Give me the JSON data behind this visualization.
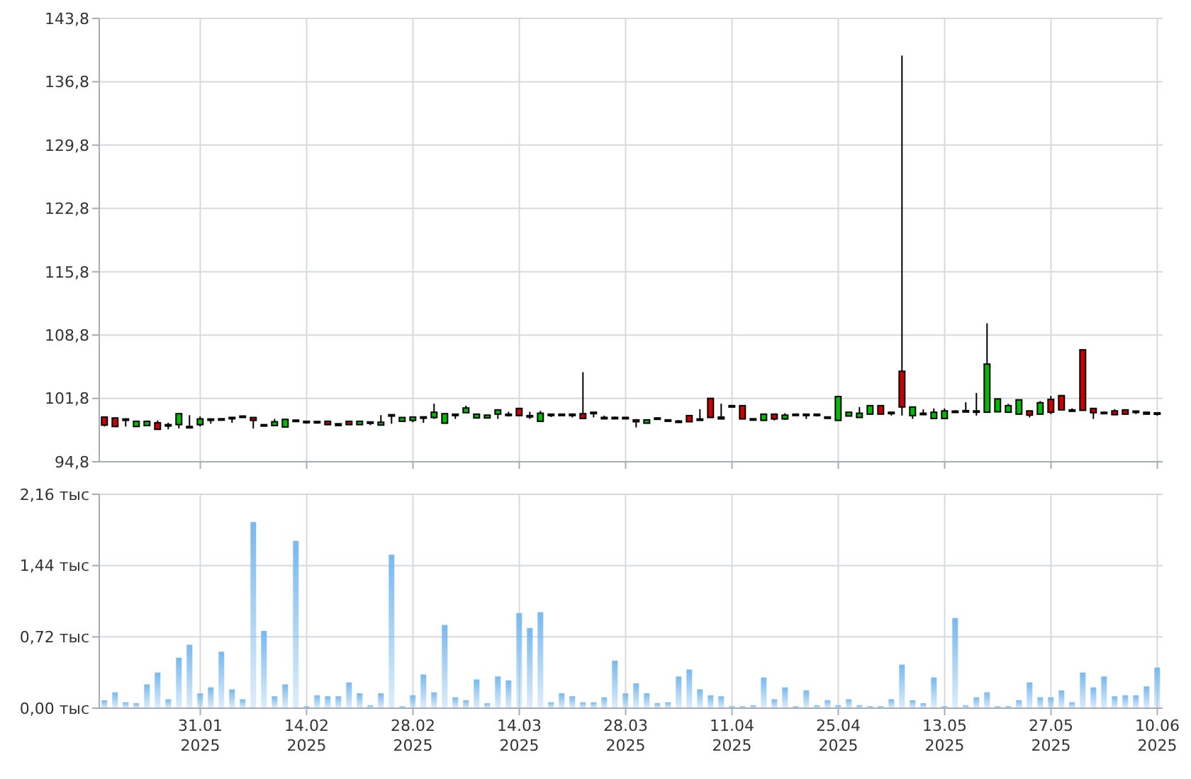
{
  "chart_data": [
    {
      "type": "candlestick",
      "categories": [
        null,
        null,
        null,
        null,
        null,
        null,
        null,
        null,
        null,
        null,
        null,
        null,
        null,
        null,
        null,
        null,
        null,
        null,
        null,
        null,
        null,
        null,
        null,
        null,
        null,
        null,
        null,
        null,
        null,
        null,
        null,
        null,
        null,
        null,
        null,
        null,
        null,
        null,
        null,
        null,
        null,
        null,
        null,
        null,
        null,
        null,
        null,
        null,
        null,
        null,
        null,
        null,
        null,
        null,
        null,
        null,
        null,
        null,
        null,
        null,
        null,
        null,
        null,
        null,
        null,
        null,
        null,
        null,
        null,
        null,
        null,
        null,
        null,
        null,
        null,
        null,
        null,
        null,
        null,
        null,
        null,
        null,
        null,
        null,
        null,
        null,
        null,
        null,
        null,
        null,
        null,
        null,
        null,
        null,
        null,
        null,
        null,
        null,
        null,
        null
      ],
      "ohlc": [
        [
          99.74,
          99.74,
          98.7,
          98.85
        ],
        [
          99.64,
          99.64,
          98.69,
          98.69
        ],
        [
          99.53,
          99.53,
          98.69,
          99.48
        ],
        [
          98.69,
          99.27,
          98.69,
          99.27
        ],
        [
          98.8,
          99.27,
          98.8,
          99.27
        ],
        [
          99.11,
          99.37,
          98.38,
          98.38
        ],
        [
          98.9,
          99.11,
          98.38,
          98.85
        ],
        [
          98.9,
          100.11,
          98.48,
          100.11
        ],
        [
          98.7,
          99.95,
          98.5,
          98.6
        ],
        [
          98.9,
          99.8,
          98.7,
          99.53
        ],
        [
          99.53,
          99.53,
          99.0,
          99.48
        ],
        [
          99.55,
          99.55,
          99.5,
          99.5
        ],
        [
          99.7,
          99.7,
          99.1,
          99.65
        ],
        [
          99.85,
          99.85,
          99.8,
          99.8
        ],
        [
          99.69,
          99.69,
          98.48,
          99.37
        ],
        [
          98.9,
          98.95,
          98.7,
          98.75
        ],
        [
          98.8,
          99.53,
          98.8,
          99.22
        ],
        [
          98.64,
          99.48,
          98.64,
          99.48
        ],
        [
          99.4,
          99.45,
          99.35,
          99.35
        ],
        [
          99.27,
          99.27,
          99.0,
          99.22
        ],
        [
          99.25,
          99.25,
          99.0,
          99.2
        ],
        [
          99.27,
          99.27,
          98.85,
          98.9
        ],
        [
          99.0,
          99.0,
          98.8,
          98.8
        ],
        [
          99.27,
          99.27,
          98.9,
          98.9
        ],
        [
          98.9,
          99.27,
          98.9,
          99.27
        ],
        [
          99.2,
          99.2,
          98.85,
          99.15
        ],
        [
          98.85,
          99.95,
          98.85,
          99.17
        ],
        [
          100.0,
          100.0,
          99.0,
          99.9
        ],
        [
          99.27,
          99.69,
          99.27,
          99.69
        ],
        [
          99.37,
          99.74,
          99.17,
          99.74
        ],
        [
          99.76,
          99.76,
          99.1,
          99.7
        ],
        [
          99.69,
          101.22,
          99.53,
          100.27
        ],
        [
          99.06,
          100.11,
          99.06,
          100.11
        ],
        [
          100.06,
          100.06,
          99.53,
          100.0
        ],
        [
          100.22,
          101.0,
          100.22,
          100.74
        ],
        [
          99.64,
          100.06,
          99.64,
          100.06
        ],
        [
          99.64,
          99.95,
          99.64,
          99.95
        ],
        [
          100.06,
          100.53,
          99.53,
          100.53
        ],
        [
          100.06,
          100.32,
          99.8,
          100.0
        ],
        [
          100.69,
          100.69,
          99.9,
          99.9
        ],
        [
          99.9,
          100.32,
          99.53,
          99.85
        ],
        [
          99.27,
          100.42,
          99.27,
          100.16
        ],
        [
          100.06,
          100.06,
          99.74,
          100.0
        ],
        [
          100.06,
          100.06,
          100.0,
          100.0
        ],
        [
          100.06,
          100.06,
          99.7,
          100.0
        ],
        [
          100.11,
          104.7,
          99.58,
          99.58
        ],
        [
          100.27,
          100.27,
          99.7,
          100.2
        ],
        [
          99.7,
          99.9,
          99.6,
          99.65
        ],
        [
          99.7,
          99.8,
          99.65,
          99.65
        ],
        [
          99.7,
          99.7,
          99.5,
          99.65
        ],
        [
          99.43,
          99.43,
          98.59,
          99.22
        ],
        [
          99.06,
          99.43,
          99.06,
          99.43
        ],
        [
          99.64,
          99.7,
          99.6,
          99.6
        ],
        [
          99.43,
          99.43,
          99.27,
          99.27
        ],
        [
          99.3,
          99.4,
          99.25,
          99.25
        ],
        [
          99.9,
          99.9,
          99.22,
          99.22
        ],
        [
          99.53,
          100.6,
          99.5,
          99.5
        ],
        [
          101.8,
          101.8,
          99.69,
          99.69
        ],
        [
          99.74,
          101.22,
          99.53,
          99.53
        ],
        [
          101.0,
          101.05,
          100.95,
          100.95
        ],
        [
          101.0,
          101.0,
          99.53,
          99.53
        ],
        [
          99.55,
          99.55,
          99.5,
          99.5
        ],
        [
          99.37,
          100.06,
          99.37,
          100.06
        ],
        [
          100.06,
          100.06,
          99.37,
          99.53
        ],
        [
          99.53,
          100.16,
          99.43,
          99.95
        ],
        [
          100.06,
          100.06,
          100.0,
          100.0
        ],
        [
          100.06,
          100.06,
          99.53,
          100.0
        ],
        [
          100.06,
          100.06,
          99.8,
          100.0
        ],
        [
          99.75,
          99.75,
          99.7,
          99.7
        ],
        [
          99.37,
          102.1,
          99.37,
          102.0
        ],
        [
          99.85,
          100.27,
          99.85,
          100.27
        ],
        [
          99.69,
          100.85,
          99.69,
          100.16
        ],
        [
          100.06,
          101.0,
          100.06,
          101.0
        ],
        [
          101.0,
          101.0,
          100.06,
          100.06
        ],
        [
          100.27,
          100.27,
          99.9,
          100.2
        ],
        [
          104.8,
          139.7,
          99.9,
          100.85
        ],
        [
          99.9,
          100.85,
          99.53,
          100.85
        ],
        [
          100.16,
          100.58,
          100.1,
          100.1
        ],
        [
          99.58,
          100.69,
          99.58,
          100.27
        ],
        [
          99.58,
          100.69,
          99.58,
          100.42
        ],
        [
          100.4,
          100.5,
          100.35,
          100.35
        ],
        [
          100.45,
          101.37,
          100.4,
          100.4
        ],
        [
          100.42,
          102.4,
          99.9,
          100.37
        ],
        [
          100.27,
          110.1,
          100.27,
          105.59
        ],
        [
          100.32,
          101.8,
          100.32,
          101.74
        ],
        [
          100.27,
          101.2,
          100.27,
          101.0
        ],
        [
          100.06,
          101.64,
          100.06,
          101.64
        ],
        [
          100.42,
          100.42,
          99.7,
          99.95
        ],
        [
          100.06,
          101.5,
          100.06,
          101.32
        ],
        [
          101.69,
          102.06,
          100.06,
          100.27
        ],
        [
          102.11,
          102.11,
          100.53,
          100.53
        ],
        [
          100.53,
          100.7,
          100.4,
          100.48
        ],
        [
          107.17,
          107.17,
          100.48,
          100.48
        ],
        [
          100.69,
          100.69,
          99.53,
          100.22
        ],
        [
          100.27,
          100.27,
          100.16,
          100.16
        ],
        [
          100.42,
          100.6,
          100.0,
          100.0
        ],
        [
          100.53,
          100.53,
          100.06,
          100.06
        ],
        [
          100.4,
          100.4,
          100.06,
          100.35
        ],
        [
          100.27,
          100.27,
          100.06,
          100.06
        ],
        [
          100.2,
          100.2,
          99.9,
          100.16
        ]
      ],
      "colors": [
        "#cc0000",
        "#cc0000",
        "#000000",
        "#00bb00",
        "#00bb00",
        "#cc0000",
        "#cc0000",
        "#00bb00",
        "#cc0000",
        "#00bb00",
        "#000000",
        "#000000",
        "#000000",
        "#000000",
        "#cc0000",
        "#000000",
        "#00bb00",
        "#00bb00",
        "#000000",
        "#000000",
        "#000000",
        "#cc0000",
        "#000000",
        "#cc0000",
        "#00bb00",
        "#000000",
        "#00bb00",
        "#000000",
        "#00bb00",
        "#00bb00",
        "#000000",
        "#00bb00",
        "#00bb00",
        "#000000",
        "#00bb00",
        "#00bb00",
        "#00bb00",
        "#00bb00",
        "#000000",
        "#cc0000",
        "#000000",
        "#00bb00",
        "#000000",
        "#000000",
        "#000000",
        "#cc0000",
        "#000000",
        "#000000",
        "#000000",
        "#000000",
        "#cc0000",
        "#00bb00",
        "#000000",
        "#000000",
        "#000000",
        "#cc0000",
        "#000000",
        "#cc0000",
        "#000000",
        "#000000",
        "#cc0000",
        "#000000",
        "#00bb00",
        "#cc0000",
        "#00bb00",
        "#000000",
        "#000000",
        "#000000",
        "#000000",
        "#00bb00",
        "#00bb00",
        "#00bb00",
        "#00bb00",
        "#cc0000",
        "#000000",
        "#cc0000",
        "#00bb00",
        "#000000",
        "#00bb00",
        "#00bb00",
        "#000000",
        "#000000",
        "#000000",
        "#00bb00",
        "#00bb00",
        "#00bb00",
        "#00bb00",
        "#cc0000",
        "#00bb00",
        "#cc0000",
        "#cc0000",
        "#000000",
        "#cc0000",
        "#cc0000",
        "#000000",
        "#cc0000",
        "#cc0000",
        "#000000",
        "#000000",
        "#000000"
      ],
      "ylim": [
        94.8,
        143.8
      ],
      "yticks": [
        {
          "value": 94.8,
          "label": "94,8"
        },
        {
          "value": 101.8,
          "label": "101,8"
        },
        {
          "value": 108.8,
          "label": "108,8"
        },
        {
          "value": 115.8,
          "label": "115,8"
        },
        {
          "value": 122.8,
          "label": "122,8"
        },
        {
          "value": 129.8,
          "label": "129,8"
        },
        {
          "value": 136.8,
          "label": "136,8"
        },
        {
          "value": 143.8,
          "label": "143,8"
        }
      ],
      "grid": true,
      "tick_labels": "y"
    },
    {
      "type": "bar",
      "categories": [
        null,
        null,
        null,
        null,
        null,
        null,
        null,
        null,
        null,
        "31.01 2025",
        null,
        null,
        null,
        null,
        null,
        null,
        null,
        null,
        null,
        "14.02 2025",
        null,
        null,
        null,
        null,
        null,
        null,
        null,
        null,
        null,
        "28.02 2025",
        null,
        null,
        null,
        null,
        null,
        null,
        null,
        null,
        null,
        "14.03 2025",
        null,
        null,
        null,
        null,
        null,
        null,
        null,
        null,
        null,
        "28.03 2025",
        null,
        null,
        null,
        null,
        null,
        null,
        null,
        null,
        null,
        "11.04 2025",
        null,
        null,
        null,
        null,
        null,
        null,
        null,
        null,
        null,
        "25.04 2025",
        null,
        null,
        null,
        null,
        null,
        null,
        null,
        null,
        null,
        "13.05 2025",
        null,
        null,
        null,
        null,
        null,
        null,
        null,
        null,
        null,
        "27.05 2025",
        null,
        null,
        null,
        null,
        null,
        null,
        null,
        null,
        null,
        "10.06 2025"
      ],
      "values": [
        0.08,
        0.16,
        0.06,
        0.05,
        0.24,
        0.36,
        0.09,
        0.51,
        0.64,
        0.15,
        0.21,
        0.57,
        0.19,
        0.09,
        1.88,
        0.78,
        0.12,
        0.24,
        1.69,
        0.02,
        0.13,
        0.12,
        0.12,
        0.26,
        0.15,
        0.03,
        0.15,
        1.55,
        0.02,
        0.13,
        0.34,
        0.16,
        0.84,
        0.11,
        0.08,
        0.29,
        0.05,
        0.32,
        0.28,
        0.96,
        0.81,
        0.97,
        0.06,
        0.15,
        0.12,
        0.06,
        0.06,
        0.11,
        0.48,
        0.15,
        0.25,
        0.15,
        0.05,
        0.06,
        0.32,
        0.39,
        0.19,
        0.13,
        0.12,
        0.02,
        0.02,
        0.03,
        0.31,
        0.09,
        0.21,
        0.02,
        0.18,
        0.03,
        0.08,
        0.03,
        0.09,
        0.03,
        0.02,
        0.02,
        0.09,
        0.44,
        0.08,
        0.05,
        0.31,
        0.02,
        0.91,
        0.03,
        0.11,
        0.16,
        0.02,
        0.02,
        0.08,
        0.26,
        0.11,
        0.11,
        0.18,
        0.06,
        0.36,
        0.21,
        0.32,
        0.12,
        0.13,
        0.13,
        0.22,
        0.41
      ],
      "color": "#78b9ee",
      "ylim": [
        0,
        2.16
      ],
      "yticks": [
        {
          "value": 0,
          "label": "0,00 тыс"
        },
        {
          "value": 0.72,
          "label": "0,72 тыс"
        },
        {
          "value": 1.44,
          "label": "1,44 тыс"
        },
        {
          "value": 2.16,
          "label": "2,16 тыс"
        }
      ],
      "grid": true
    }
  ]
}
